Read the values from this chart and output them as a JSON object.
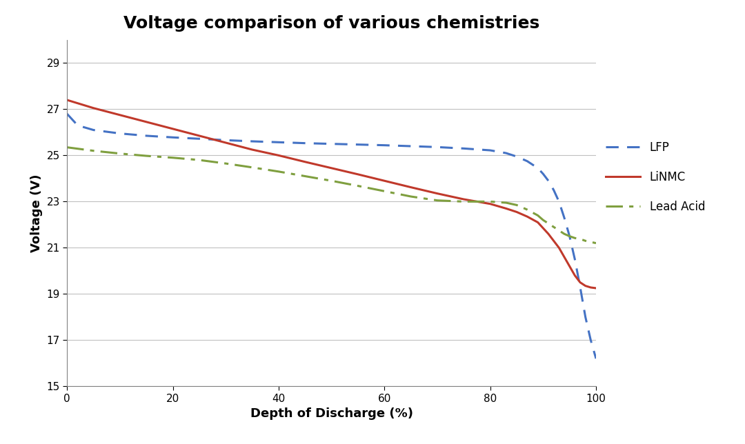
{
  "title": "Voltage comparison of various chemistries",
  "xlabel": "Depth of Discharge (%)",
  "ylabel": "Voltage (V)",
  "xlim": [
    0,
    100
  ],
  "ylim": [
    15,
    30
  ],
  "yticks": [
    15,
    17,
    19,
    21,
    23,
    25,
    27,
    29
  ],
  "xticks": [
    0,
    20,
    40,
    60,
    80,
    100
  ],
  "background_color": "#ffffff",
  "title_fontsize": 18,
  "axis_label_fontsize": 13,
  "tick_fontsize": 11,
  "legend_fontsize": 12,
  "lfp": {
    "color": "#4472C4",
    "linestyle": "dashed",
    "linewidth": 2.2,
    "label": "LFP",
    "x": [
      0,
      2,
      5,
      10,
      15,
      20,
      25,
      30,
      35,
      40,
      45,
      50,
      55,
      60,
      65,
      70,
      75,
      80,
      83,
      85,
      87,
      89,
      90,
      91,
      92,
      93,
      94,
      95,
      96,
      97,
      98,
      99,
      100
    ],
    "y": [
      26.8,
      26.3,
      26.1,
      25.95,
      25.85,
      25.78,
      25.72,
      25.66,
      25.61,
      25.57,
      25.53,
      25.5,
      25.47,
      25.44,
      25.4,
      25.36,
      25.3,
      25.22,
      25.1,
      24.95,
      24.75,
      24.45,
      24.2,
      23.9,
      23.5,
      23.0,
      22.3,
      21.5,
      20.5,
      19.3,
      18.0,
      17.0,
      16.2
    ]
  },
  "linmc": {
    "color": "#C0392B",
    "linestyle": "solid",
    "linewidth": 2.2,
    "label": "LiNMC",
    "x": [
      0,
      5,
      10,
      15,
      20,
      25,
      30,
      35,
      40,
      45,
      50,
      55,
      60,
      65,
      70,
      75,
      80,
      83,
      85,
      87,
      89,
      90,
      91,
      92,
      93,
      94,
      95,
      96,
      97,
      98,
      99,
      100
    ],
    "y": [
      27.4,
      27.05,
      26.75,
      26.45,
      26.15,
      25.85,
      25.55,
      25.25,
      25.0,
      24.72,
      24.45,
      24.18,
      23.9,
      23.62,
      23.35,
      23.1,
      22.9,
      22.7,
      22.55,
      22.35,
      22.1,
      21.85,
      21.6,
      21.3,
      21.0,
      20.6,
      20.2,
      19.8,
      19.5,
      19.35,
      19.28,
      19.25
    ]
  },
  "lead_acid": {
    "color": "#7F9F3F",
    "linestyle": "dashdot",
    "linewidth": 2.2,
    "label": "Lead Acid",
    "x": [
      0,
      5,
      10,
      15,
      20,
      25,
      30,
      35,
      40,
      45,
      50,
      55,
      60,
      65,
      70,
      75,
      80,
      83,
      85,
      87,
      89,
      90,
      91,
      92,
      93,
      94,
      95,
      96,
      97,
      98,
      99,
      100
    ],
    "y": [
      25.35,
      25.2,
      25.08,
      24.98,
      24.9,
      24.8,
      24.65,
      24.48,
      24.3,
      24.1,
      23.9,
      23.68,
      23.45,
      23.22,
      23.05,
      23.0,
      23.0,
      22.95,
      22.85,
      22.65,
      22.4,
      22.2,
      22.05,
      21.9,
      21.75,
      21.6,
      21.5,
      21.42,
      21.38,
      21.3,
      21.25,
      21.2
    ]
  }
}
